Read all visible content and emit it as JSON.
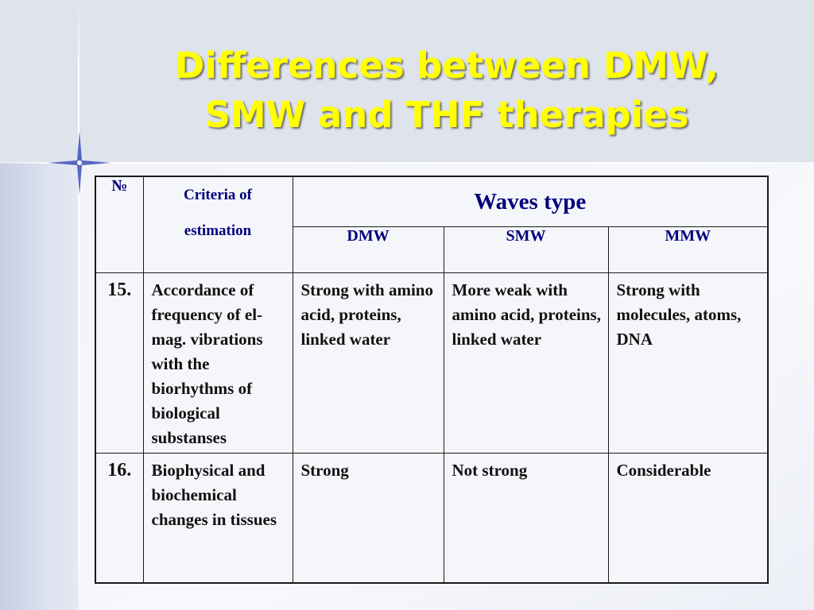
{
  "slide": {
    "title_line1": "Differences between DMW,",
    "title_line2": "SMW and THF therapies"
  },
  "table": {
    "header": {
      "number": "№",
      "criteria_line1": "Criteria of",
      "criteria_line2": "estimation",
      "waves_type": "Waves type",
      "dmw": "DMW",
      "smw": "SMW",
      "mmw": "MMW"
    },
    "rows": [
      {
        "number": "15.",
        "criteria": "Accordance of frequency of el-mag. vibrations with the biorhythms of biological substanses",
        "dmw": "Strong with amino acid, proteins, linked water",
        "smw": "More weak with amino acid, proteins, linked water",
        "mmw": "Strong with molecules, atoms, DNA"
      },
      {
        "number": "16.",
        "criteria": "Biophysical and biochemical changes in tissues",
        "dmw": "Strong",
        "smw": "Not strong",
        "mmw": "Considerable"
      }
    ]
  },
  "colors": {
    "title": "#ffff00",
    "header_text": "#00007a",
    "title_band": "#dfe3ec"
  }
}
